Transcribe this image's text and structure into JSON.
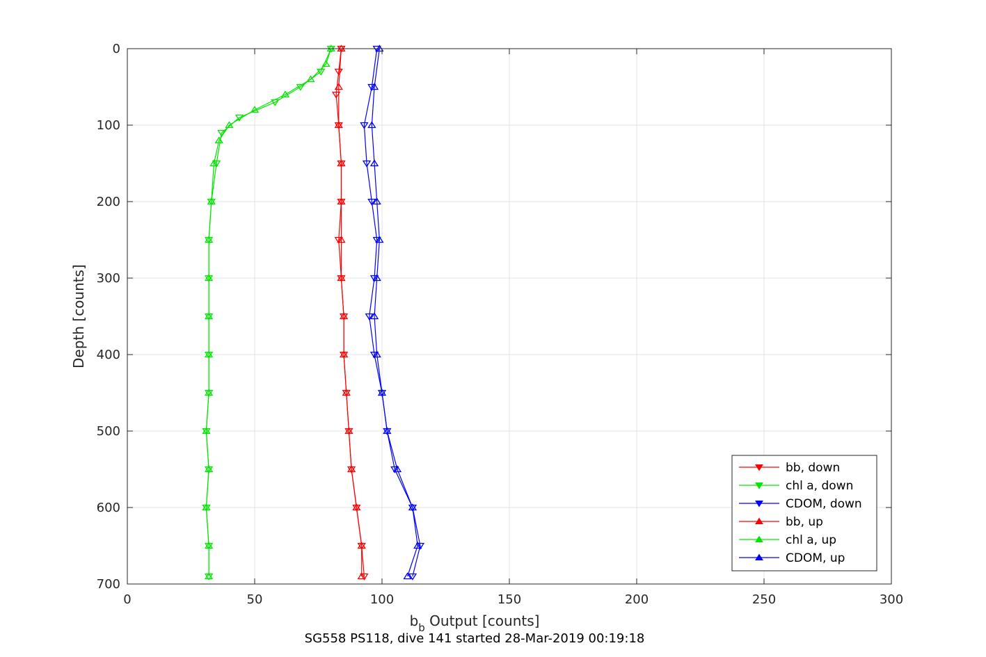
{
  "chart_data": {
    "type": "line",
    "xlabel": {
      "main": "b",
      "sub": "b",
      "rest": " Output [counts]"
    },
    "ylabel": "Depth [counts]",
    "caption": "SG558 PS118, dive 141 started 28-Mar-2019 00:19:18",
    "xlim": [
      0,
      300
    ],
    "ylim": [
      700,
      0
    ],
    "y_reversed": true,
    "grid": true,
    "legend_position": "bottom-right",
    "xticks": [
      "0",
      "50",
      "100",
      "150",
      "200",
      "250",
      "300"
    ],
    "yticks": [
      "0",
      "100",
      "200",
      "300",
      "400",
      "500",
      "600",
      "700"
    ],
    "series": [
      {
        "name": "bb, down",
        "color": "#ff0000",
        "marker": "triangle-down",
        "depth": [
          0,
          30,
          60,
          100,
          150,
          200,
          250,
          300,
          350,
          400,
          450,
          500,
          550,
          600,
          650,
          690
        ],
        "x": [
          84,
          83,
          82,
          83,
          84,
          84,
          83,
          84,
          85,
          85,
          86,
          87,
          88,
          90,
          92,
          93
        ]
      },
      {
        "name": "chl a, down",
        "color": "#00e600",
        "marker": "triangle-down",
        "depth": [
          0,
          30,
          50,
          70,
          90,
          110,
          150,
          200,
          250,
          300,
          350,
          400,
          450,
          500,
          550,
          600,
          650,
          690
        ],
        "x": [
          80,
          76,
          68,
          58,
          44,
          37,
          35,
          33,
          32,
          32,
          32,
          32,
          32,
          31,
          32,
          31,
          32,
          32
        ]
      },
      {
        "name": "CDOM, down",
        "color": "#0000ff",
        "marker": "triangle-down",
        "depth": [
          0,
          50,
          100,
          150,
          200,
          250,
          300,
          350,
          400,
          450,
          500,
          550,
          600,
          650,
          690
        ],
        "x": [
          98,
          96,
          93,
          94,
          96,
          98,
          97,
          95,
          97,
          100,
          102,
          105,
          112,
          115,
          112
        ]
      },
      {
        "name": "bb, up",
        "color": "#ff0000",
        "marker": "triangle-up",
        "depth": [
          690,
          650,
          600,
          550,
          500,
          450,
          400,
          350,
          300,
          250,
          200,
          150,
          100,
          50,
          0
        ],
        "x": [
          92,
          92,
          90,
          88,
          87,
          86,
          85,
          85,
          84,
          84,
          84,
          84,
          83,
          83,
          84
        ]
      },
      {
        "name": "chl a, up",
        "color": "#00e600",
        "marker": "triangle-up",
        "depth": [
          690,
          650,
          600,
          550,
          500,
          450,
          400,
          350,
          300,
          250,
          200,
          150,
          120,
          100,
          80,
          60,
          40,
          20,
          0
        ],
        "x": [
          32,
          32,
          31,
          32,
          31,
          32,
          32,
          32,
          32,
          32,
          33,
          34,
          36,
          40,
          50,
          62,
          72,
          78,
          80
        ]
      },
      {
        "name": "CDOM, up",
        "color": "#0000ff",
        "marker": "triangle-up",
        "depth": [
          690,
          650,
          600,
          550,
          500,
          450,
          400,
          350,
          300,
          250,
          200,
          150,
          100,
          50,
          0
        ],
        "x": [
          110,
          114,
          112,
          106,
          102,
          100,
          98,
          97,
          98,
          99,
          98,
          97,
          96,
          97,
          99
        ]
      }
    ]
  }
}
